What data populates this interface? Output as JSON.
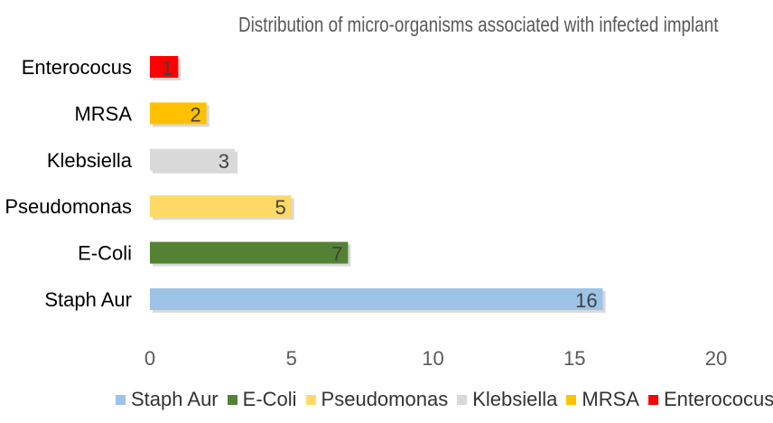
{
  "chart_data": {
    "type": "bar",
    "orientation": "horizontal",
    "title": "Distribution of micro-organisms associated with infected implant",
    "categories": [
      "Staph Aur",
      "E-Coli",
      "Pseudomonas",
      "Klebsiella",
      "MRSA",
      "Enterococus"
    ],
    "values": [
      16,
      7,
      5,
      3,
      2,
      1
    ],
    "colors": [
      "#9dc3e6",
      "#548235",
      "#ffd966",
      "#d9d9d9",
      "#ffc000",
      "#ff0000"
    ],
    "xlim": [
      0,
      20
    ],
    "xticks": [
      0,
      5,
      10,
      15,
      20
    ],
    "grid": false,
    "legend_position": "bottom",
    "legend": [
      "Staph Aur",
      "E-Coli",
      "Pseudomonas",
      "Klebsiella",
      "MRSA",
      "Enterococus"
    ]
  }
}
